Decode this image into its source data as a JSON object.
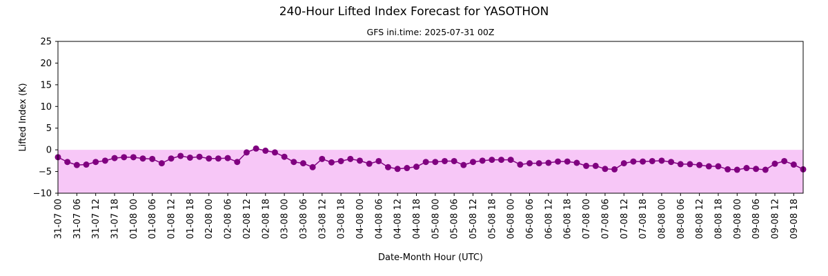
{
  "chart_data": {
    "type": "line",
    "title": "240-Hour Lifted Index Forecast for YASOTHON",
    "subtitle": "GFS ini.time: 2025-07-31 00Z",
    "xlabel": "Date-Month Hour (UTC)",
    "ylabel": "Lifted Index (K)",
    "ylim": [
      -10,
      25
    ],
    "yticks": [
      -10,
      -5,
      0,
      5,
      10,
      15,
      20,
      25
    ],
    "xticks": [
      "31-07 00",
      "31-07 06",
      "31-07 12",
      "31-07 18",
      "01-08 00",
      "01-08 06",
      "01-08 12",
      "01-08 18",
      "02-08 00",
      "02-08 06",
      "02-08 12",
      "02-08 18",
      "03-08 00",
      "03-08 06",
      "03-08 12",
      "03-08 18",
      "04-08 00",
      "04-08 06",
      "04-08 12",
      "04-08 18",
      "05-08 00",
      "05-08 06",
      "05-08 12",
      "05-08 18",
      "06-08 00",
      "06-08 06",
      "06-08 12",
      "06-08 18",
      "07-08 00",
      "07-08 06",
      "07-08 12",
      "07-08 18",
      "08-08 00",
      "08-08 06",
      "08-08 12",
      "08-08 18",
      "09-08 00",
      "09-08 06",
      "09-08 12",
      "09-08 18"
    ],
    "x_step_hours": 3,
    "values": [
      -1.7,
      -2.8,
      -3.5,
      -3.4,
      -2.8,
      -2.5,
      -1.9,
      -1.7,
      -1.7,
      -2.0,
      -2.1,
      -3.1,
      -2.0,
      -1.4,
      -1.8,
      -1.6,
      -2.0,
      -2.0,
      -1.9,
      -2.8,
      -0.6,
      0.3,
      -0.2,
      -0.6,
      -1.6,
      -2.8,
      -3.1,
      -4.0,
      -2.1,
      -2.9,
      -2.6,
      -2.1,
      -2.5,
      -3.2,
      -2.6,
      -4.0,
      -4.4,
      -4.2,
      -3.9,
      -2.8,
      -2.8,
      -2.6,
      -2.6,
      -3.5,
      -2.8,
      -2.5,
      -2.3,
      -2.3,
      -2.3,
      -3.4,
      -3.1,
      -3.1,
      -3.0,
      -2.7,
      -2.7,
      -3.0,
      -3.7,
      -3.7,
      -4.4,
      -4.5,
      -3.1,
      -2.7,
      -2.7,
      -2.6,
      -2.5,
      -2.8,
      -3.3,
      -3.3,
      -3.5,
      -3.8,
      -3.8,
      -4.5,
      -4.6,
      -4.2,
      -4.4,
      -4.6,
      -3.2,
      -2.6,
      -3.4,
      -4.5
    ],
    "colors": {
      "line": "#800080",
      "marker": "#800080",
      "fill": "#ee82ee",
      "fill_alpha": 0.45
    },
    "grid": false,
    "legend": "none"
  }
}
